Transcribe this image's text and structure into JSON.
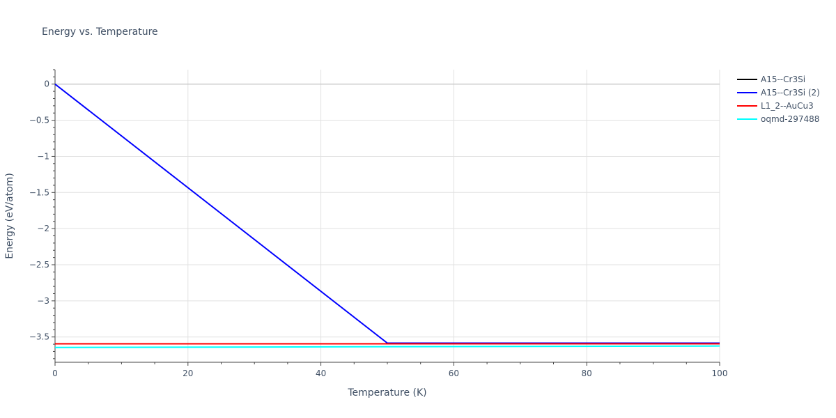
{
  "chart_data": {
    "type": "line",
    "title": "Energy vs. Temperature",
    "xlabel": "Temperature (K)",
    "ylabel": "Energy (eV/atom)",
    "xlim": [
      0,
      100
    ],
    "ylim": [
      -3.85,
      0.2
    ],
    "x_ticks": [
      0,
      20,
      40,
      60,
      80,
      100
    ],
    "y_ticks": [
      0,
      -0.5,
      -1,
      -1.5,
      -2,
      -2.5,
      -3,
      -3.5
    ],
    "x_tick_labels": [
      "0",
      "20",
      "40",
      "60",
      "80",
      "100"
    ],
    "y_tick_labels": [
      "0",
      "−0.5",
      "−1",
      "−1.5",
      "−2",
      "−2.5",
      "−3",
      "−3.5"
    ],
    "grid": true,
    "legend_position": "top-right outside",
    "series": [
      {
        "name": "A15--Cr3Si",
        "color": "#000000",
        "x": [
          0,
          100
        ],
        "y": [
          -3.595,
          -3.595
        ]
      },
      {
        "name": "A15--Cr3Si (2)",
        "color": "#0000ff",
        "x": [
          0,
          50,
          100
        ],
        "y": [
          0,
          -3.585,
          -3.585
        ]
      },
      {
        "name": "L1_2--AuCu3",
        "color": "#ff0000",
        "x": [
          0,
          100
        ],
        "y": [
          -3.595,
          -3.595
        ]
      },
      {
        "name": "oqmd-297488",
        "color": "#00ffff",
        "x": [
          0,
          100
        ],
        "y": [
          -3.645,
          -3.625
        ]
      }
    ]
  }
}
